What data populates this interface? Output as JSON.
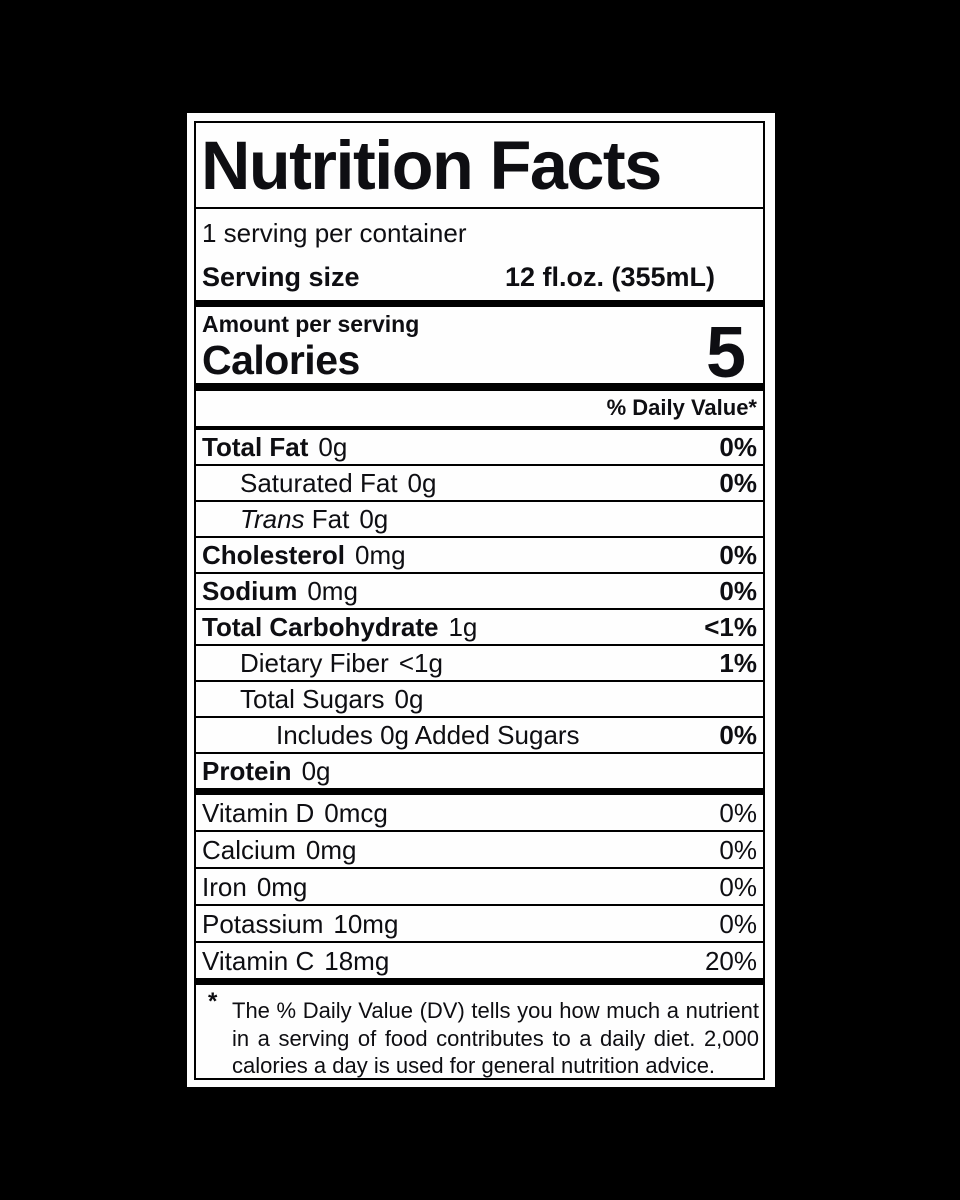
{
  "label": {
    "title": "Nutrition Facts",
    "servings_per_container": "1 serving per container",
    "serving_size_label": "Serving size",
    "serving_size_value": "12 fl.oz. (355mL)",
    "amount_per_serving": "Amount per serving",
    "calories_label": "Calories",
    "calories_value": "5",
    "daily_value_header": "% Daily Value*",
    "nutrients": [
      {
        "name": "Total Fat",
        "amount": "0g",
        "dv": "0%",
        "bold": true,
        "indent": 0
      },
      {
        "name": "Saturated Fat",
        "amount": "0g",
        "dv": "0%",
        "bold": false,
        "indent": 1
      },
      {
        "name_italic": "Trans",
        "name": "Fat",
        "amount": "0g",
        "dv": "",
        "bold": false,
        "indent": 1
      },
      {
        "name": "Cholesterol",
        "amount": "0mg",
        "dv": "0%",
        "bold": true,
        "indent": 0
      },
      {
        "name": "Sodium",
        "amount": "0mg",
        "dv": "0%",
        "bold": true,
        "indent": 0
      },
      {
        "name": "Total Carbohydrate",
        "amount": "1g",
        "dv": "<1%",
        "bold": true,
        "indent": 0
      },
      {
        "name": "Dietary Fiber",
        "amount": "<1g",
        "dv": "1%",
        "bold": false,
        "indent": 1
      },
      {
        "name": "Total Sugars",
        "amount": "0g",
        "dv": "",
        "bold": false,
        "indent": 1
      },
      {
        "name": "Includes 0g Added Sugars",
        "amount": "",
        "dv": "0%",
        "bold": false,
        "indent": 2
      },
      {
        "name": "Protein",
        "amount": "0g",
        "dv": "",
        "bold": true,
        "indent": 0
      }
    ],
    "vitamins": [
      {
        "name": "Vitamin D",
        "amount": "0mcg",
        "dv": "0%"
      },
      {
        "name": "Calcium",
        "amount": "0mg",
        "dv": "0%"
      },
      {
        "name": "Iron",
        "amount": "0mg",
        "dv": "0%"
      },
      {
        "name": "Potassium",
        "amount": "10mg",
        "dv": "0%"
      },
      {
        "name": "Vitamin C",
        "amount": "18mg",
        "dv": "20%"
      }
    ],
    "footnote_marker": "*",
    "footnote": "The % Daily Value (DV) tells you how much a nutrient in a serving of food contributes to a daily diet. 2,000 calories a day is used for general nutrition advice.",
    "colors": {
      "background": "#000000",
      "label_background": "#fefefe",
      "text": "#0e0e12"
    }
  }
}
